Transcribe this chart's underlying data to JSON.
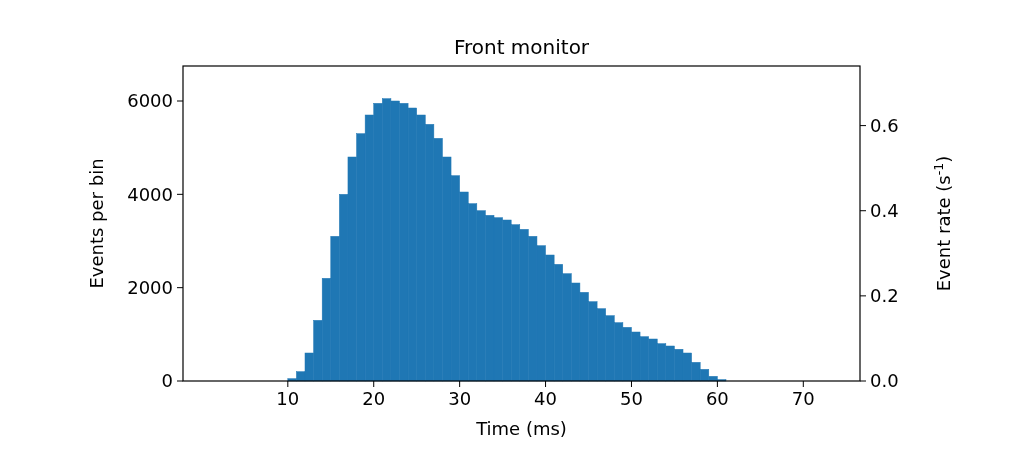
{
  "chart_data": {
    "type": "histogram",
    "title": "Front monitor",
    "xlabel": "Time (ms)",
    "ylabel": "Events per bin",
    "y2label": "Event rate (s$^{-1}$)",
    "bins": [
      10,
      11,
      12,
      13,
      14,
      15,
      16,
      17,
      18,
      19,
      20,
      21,
      22,
      23,
      24,
      25,
      26,
      27,
      28,
      29,
      30,
      31,
      32,
      33,
      34,
      35,
      36,
      37,
      38,
      39,
      40,
      41,
      42,
      43,
      44,
      45,
      46,
      47,
      48,
      49,
      50,
      51,
      52,
      53,
      54,
      55,
      56,
      57,
      58,
      59,
      60,
      61
    ],
    "values": [
      50,
      200,
      600,
      1300,
      2200,
      3100,
      4000,
      4800,
      5300,
      5700,
      5950,
      6050,
      6000,
      5950,
      5850,
      5700,
      5500,
      5200,
      4800,
      4400,
      4050,
      3800,
      3650,
      3550,
      3500,
      3450,
      3350,
      3250,
      3100,
      2900,
      2700,
      2500,
      2300,
      2100,
      1900,
      1700,
      1550,
      1400,
      1250,
      1150,
      1050,
      950,
      900,
      800,
      750,
      680,
      600,
      400,
      250,
      100,
      30
    ],
    "color": "#1f77b4",
    "xlim": [
      -2.2,
      76.6
    ],
    "xticks": [
      10,
      20,
      30,
      40,
      50,
      60,
      70
    ],
    "ylim": [
      0,
      6750
    ],
    "yticks": [
      0,
      2000,
      4000,
      6000
    ],
    "y2lim": [
      0,
      0.74
    ],
    "y2ticks": [
      {
        "value": 0,
        "label": "0.0"
      },
      {
        "value": 0.2,
        "label": "0.2"
      },
      {
        "value": 0.4,
        "label": "0.4"
      },
      {
        "value": 0.6,
        "label": "0.6"
      }
    ]
  }
}
